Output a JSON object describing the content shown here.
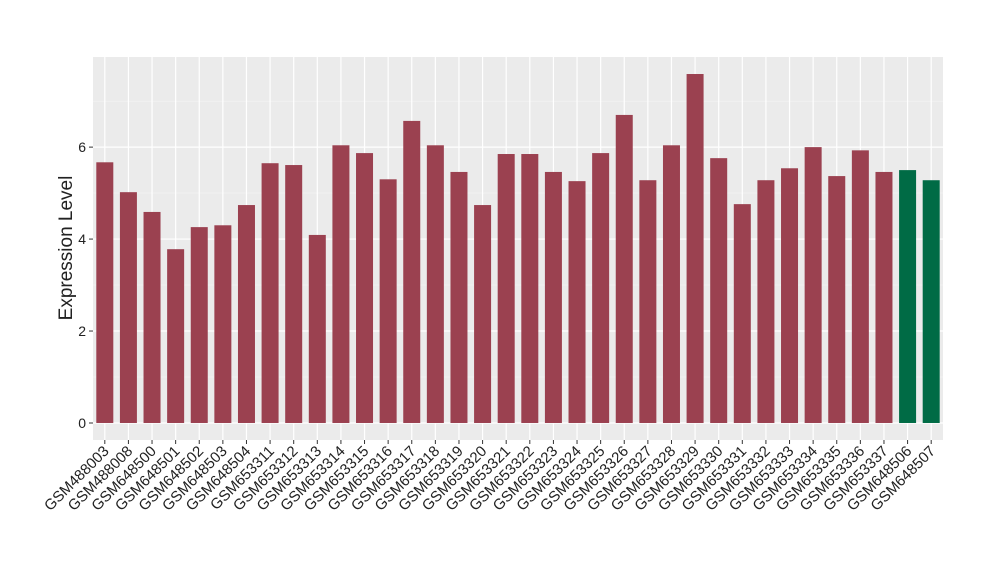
{
  "chart_data": {
    "type": "bar",
    "y_label": "Expression Level",
    "categories": [
      "GSM488003",
      "GSM488008",
      "GSM648500",
      "GSM648501",
      "GSM648502",
      "GSM648503",
      "GSM648504",
      "GSM653311",
      "GSM653312",
      "GSM653313",
      "GSM653314",
      "GSM653315",
      "GSM653316",
      "GSM653317",
      "GSM653318",
      "GSM653319",
      "GSM653320",
      "GSM653321",
      "GSM653322",
      "GSM653323",
      "GSM653324",
      "GSM653325",
      "GSM653326",
      "GSM653327",
      "GSM653328",
      "GSM653329",
      "GSM653330",
      "GSM653331",
      "GSM653332",
      "GSM653333",
      "GSM653334",
      "GSM653335",
      "GSM653336",
      "GSM653337",
      "GSM648506",
      "GSM648507"
    ],
    "values": [
      5.67,
      5.02,
      4.59,
      3.78,
      4.26,
      4.3,
      4.74,
      5.65,
      5.61,
      4.09,
      6.04,
      5.87,
      5.3,
      6.57,
      6.04,
      5.46,
      4.74,
      5.85,
      5.85,
      5.46,
      5.26,
      5.87,
      6.7,
      5.28,
      6.04,
      7.59,
      5.76,
      4.76,
      5.28,
      5.54,
      6.0,
      5.37,
      5.93,
      5.46,
      5.5,
      5.28
    ],
    "colors": [
      "#9b4150",
      "#9b4150",
      "#9b4150",
      "#9b4150",
      "#9b4150",
      "#9b4150",
      "#9b4150",
      "#9b4150",
      "#9b4150",
      "#9b4150",
      "#9b4150",
      "#9b4150",
      "#9b4150",
      "#9b4150",
      "#9b4150",
      "#9b4150",
      "#9b4150",
      "#9b4150",
      "#9b4150",
      "#9b4150",
      "#9b4150",
      "#9b4150",
      "#9b4150",
      "#9b4150",
      "#9b4150",
      "#9b4150",
      "#9b4150",
      "#9b4150",
      "#9b4150",
      "#9b4150",
      "#9b4150",
      "#9b4150",
      "#9b4150",
      "#9b4150",
      "#006b45",
      "#006b45"
    ],
    "ylim": [
      -0.37,
      7.96
    ],
    "yticks": [
      0,
      2,
      4,
      6
    ],
    "minor_yticks": [
      1,
      3,
      5,
      7
    ],
    "grid": true
  }
}
